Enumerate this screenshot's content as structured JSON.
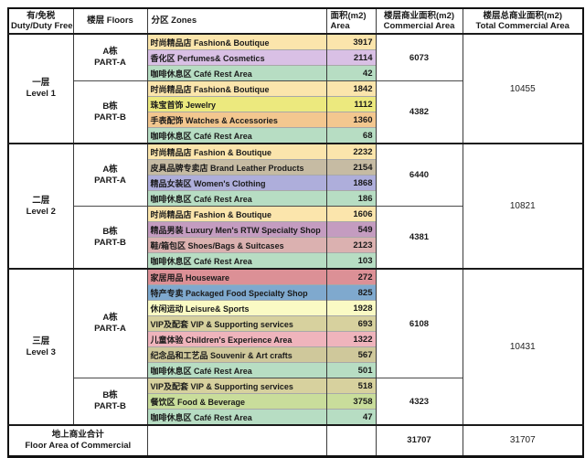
{
  "columns": [
    {
      "key": "duty",
      "zh": "有/免税",
      "en": "Duty/Duty Free",
      "align": "center"
    },
    {
      "key": "floors",
      "zh": "楼层 Floors",
      "en": "",
      "align": "center"
    },
    {
      "key": "zones",
      "zh": "分区 Zones",
      "en": "",
      "align": "left"
    },
    {
      "key": "area",
      "zh": "面积(m2)",
      "en": "Area",
      "align": "left"
    },
    {
      "key": "commercial",
      "zh": "楼层商业面积(m2)",
      "en": "Commercial  Area",
      "align": "center"
    },
    {
      "key": "total",
      "zh": "楼层总商业面积(m2)",
      "en": "Total  Commercial   Area",
      "align": "center"
    }
  ],
  "colors": {
    "fashion": "#FBE5AC",
    "perfumes": "#D9C0E5",
    "cafe": "#B7DDC3",
    "jewelry": "#ECE97E",
    "watches": "#F3C78F",
    "leather": "#C6BBA3",
    "womens": "#AEAEDB",
    "mens": "#C49CC0",
    "shoes": "#DBB1B0",
    "houseware": "#DC9096",
    "packaged_food": "#7FA9CE",
    "leisure": "#FAFAC4",
    "vip": "#D7D19E",
    "childrens": "#EFB4BC",
    "souvenir": "#CFC89B",
    "food_beverage": "#C9DD9B"
  },
  "levels": [
    {
      "floor_zh": "一层",
      "floor_en": "Level 1",
      "total": "10455",
      "parts": [
        {
          "part_zh": "A栋",
          "part_en": "PART-A",
          "commercial": "6073",
          "zones": [
            {
              "zh": "时尚精品店",
              "en": "Fashion& Boutique",
              "area": "3917",
              "color": "#FBE5AC"
            },
            {
              "zh": "香化区",
              "en": "Perfumes& Cosmetics",
              "area": "2114",
              "color": "#D9C0E5"
            },
            {
              "zh": "咖啡休息区",
              "en": "Café Rest Area",
              "area": "42",
              "color": "#B7DDC3"
            }
          ]
        },
        {
          "part_zh": "B栋",
          "part_en": "PART-B",
          "commercial": "4382",
          "zones": [
            {
              "zh": "时尚精品店",
              "en": "Fashion& Boutique",
              "area": "1842",
              "color": "#FBE5AC"
            },
            {
              "zh": "珠宝首饰",
              "en": "Jewelry",
              "area": "1112",
              "color": "#ECE97E"
            },
            {
              "zh": "手表配饰",
              "en": "Watches & Accessories",
              "area": "1360",
              "color": "#F3C78F"
            },
            {
              "zh": "咖啡休息区",
              "en": "Café Rest Area",
              "area": "68",
              "color": "#B7DDC3"
            }
          ]
        }
      ]
    },
    {
      "floor_zh": "二层",
      "floor_en": "Level 2",
      "total": "10821",
      "parts": [
        {
          "part_zh": "A栋",
          "part_en": "PART-A",
          "commercial": "6440",
          "zones": [
            {
              "zh": "时尚精品店",
              "en": "Fashion & Boutique",
              "area": "2232",
              "color": "#FBE5AC"
            },
            {
              "zh": "皮具品牌专卖店",
              "en": "Brand Leather Products",
              "area": "2154",
              "color": "#C6BBA3"
            },
            {
              "zh": "精品女装区",
              "en": "Women's Clothing",
              "area": "1868",
              "color": "#AEAEDB"
            },
            {
              "zh": "咖啡休息区",
              "en": "Café Rest Area",
              "area": "186",
              "color": "#B7DDC3"
            }
          ]
        },
        {
          "part_zh": "B栋",
          "part_en": "PART-B",
          "commercial": "4381",
          "zones": [
            {
              "zh": "时尚精品店",
              "en": "Fashion & Boutique",
              "area": "1606",
              "color": "#FBE5AC"
            },
            {
              "zh": "精品男装",
              "en": "Luxury Men's RTW Specialty Shop",
              "area": "549",
              "color": "#C49CC0"
            },
            {
              "zh": "鞋/箱包区",
              "en": "Shoes/Bags & Suitcases",
              "area": "2123",
              "color": "#DBB1B0"
            },
            {
              "zh": "咖啡休息区",
              "en": "Café Rest Area",
              "area": "103",
              "color": "#B7DDC3"
            }
          ]
        }
      ]
    },
    {
      "floor_zh": "三层",
      "floor_en": "Level 3",
      "total": "10431",
      "parts": [
        {
          "part_zh": "A栋",
          "part_en": "PART-A",
          "commercial": "6108",
          "zones": [
            {
              "zh": "家居用品",
              "en": "Houseware",
              "area": "272",
              "color": "#DC9096"
            },
            {
              "zh": "特产专卖",
              "en": "Packaged Food Specialty Shop",
              "area": "825",
              "color": "#7FA9CE"
            },
            {
              "zh": "休闲运动",
              "en": "Leisure& Sports",
              "area": "1928",
              "color": "#FAFAC4"
            },
            {
              "zh": "VIP及配套",
              "en": "VIP & Supporting services",
              "area": "693",
              "color": "#D7D19E"
            },
            {
              "zh": "儿童体验",
              "en": "Children's Experience Area",
              "area": "1322",
              "color": "#EFB4BC"
            },
            {
              "zh": "纪念品和工艺品",
              "en": "Souvenir & Art crafts",
              "area": "567",
              "color": "#CFC89B"
            },
            {
              "zh": "咖啡休息区",
              "en": "Café Rest Area",
              "area": "501",
              "color": "#B7DDC3"
            }
          ]
        },
        {
          "part_zh": "B栋",
          "part_en": "PART-B",
          "commercial": "4323",
          "zones": [
            {
              "zh": "VIP及配套",
              "en": "VIP & Supporting services",
              "area": "518",
              "color": "#D7D19E"
            },
            {
              "zh": "餐饮区",
              "en": "Food & Beverage",
              "area": "3758",
              "color": "#C9DD9B"
            },
            {
              "zh": "咖啡休息区",
              "en": "Café Rest Area",
              "area": "47",
              "color": "#B7DDC3"
            }
          ]
        }
      ]
    }
  ],
  "footer": {
    "label_zh": "地上商业合计",
    "label_en": "Floor Area of Commercial",
    "commercial_total": "31707",
    "grand_total": "31707"
  }
}
